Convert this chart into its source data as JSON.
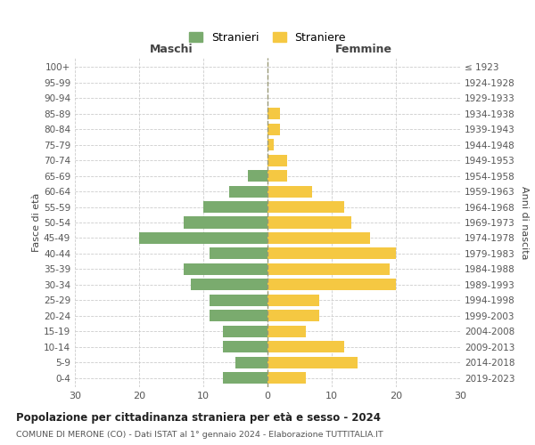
{
  "age_groups": [
    "0-4",
    "5-9",
    "10-14",
    "15-19",
    "20-24",
    "25-29",
    "30-34",
    "35-39",
    "40-44",
    "45-49",
    "50-54",
    "55-59",
    "60-64",
    "65-69",
    "70-74",
    "75-79",
    "80-84",
    "85-89",
    "90-94",
    "95-99",
    "100+"
  ],
  "birth_years": [
    "2019-2023",
    "2014-2018",
    "2009-2013",
    "2004-2008",
    "1999-2003",
    "1994-1998",
    "1989-1993",
    "1984-1988",
    "1979-1983",
    "1974-1978",
    "1969-1973",
    "1964-1968",
    "1959-1963",
    "1954-1958",
    "1949-1953",
    "1944-1948",
    "1939-1943",
    "1934-1938",
    "1929-1933",
    "1924-1928",
    "≤ 1923"
  ],
  "males": [
    7,
    5,
    7,
    7,
    9,
    9,
    12,
    13,
    9,
    20,
    13,
    10,
    6,
    3,
    0,
    0,
    0,
    0,
    0,
    0,
    0
  ],
  "females": [
    6,
    14,
    12,
    6,
    8,
    8,
    20,
    19,
    20,
    16,
    13,
    12,
    7,
    3,
    3,
    1,
    2,
    2,
    0,
    0,
    0
  ],
  "male_color": "#7aab6e",
  "female_color": "#f5c842",
  "background_color": "#ffffff",
  "grid_color": "#cccccc",
  "title": "Popolazione per cittadinanza straniera per età e sesso - 2024",
  "subtitle": "COMUNE DI MERONE (CO) - Dati ISTAT al 1° gennaio 2024 - Elaborazione TUTTITALIA.IT",
  "ylabel_left": "Fasce di età",
  "ylabel_right": "Anni di nascita",
  "xlabel_left": "Maschi",
  "xlabel_right": "Femmine",
  "legend_male": "Stranieri",
  "legend_female": "Straniere",
  "xlim": 30,
  "bar_height": 0.75
}
